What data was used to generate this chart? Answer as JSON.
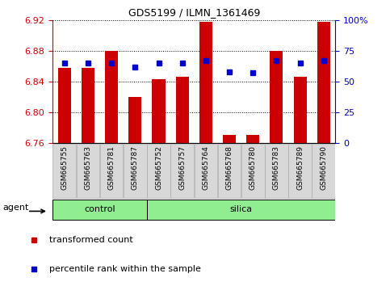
{
  "title": "GDS5199 / ILMN_1361469",
  "samples": [
    "GSM665755",
    "GSM665763",
    "GSM665781",
    "GSM665787",
    "GSM665752",
    "GSM665757",
    "GSM665764",
    "GSM665768",
    "GSM665780",
    "GSM665783",
    "GSM665789",
    "GSM665790"
  ],
  "bar_values": [
    6.858,
    6.858,
    6.88,
    6.82,
    6.843,
    6.846,
    6.918,
    6.77,
    6.77,
    6.88,
    6.846,
    6.918
  ],
  "percentile_values": [
    65,
    65,
    65,
    62,
    65,
    65,
    67,
    58,
    57,
    67,
    65,
    67
  ],
  "ymin": 6.76,
  "ymax": 6.92,
  "yticks": [
    6.76,
    6.8,
    6.84,
    6.88,
    6.92
  ],
  "right_yticks": [
    0,
    25,
    50,
    75,
    100
  ],
  "right_ytick_labels": [
    "0",
    "25",
    "50",
    "75",
    "100%"
  ],
  "bar_color": "#cc0000",
  "percentile_color": "#0000cc",
  "n_control": 4,
  "n_silica": 8,
  "group_fill": "#90EE90",
  "group_edge": "#000000",
  "agent_label": "agent",
  "legend_items": [
    {
      "label": "transformed count",
      "color": "#cc0000"
    },
    {
      "label": "percentile rank within the sample",
      "color": "#0000cc"
    }
  ],
  "plot_bg_color": "#ffffff",
  "grid_color": "#000000",
  "grid_style": "dotted",
  "tick_color_left": "#cc0000",
  "tick_color_right": "#0000cc",
  "xtick_bg": "#d8d8d8",
  "xtick_edge": "#888888",
  "bar_width": 0.55,
  "marker_size": 5
}
